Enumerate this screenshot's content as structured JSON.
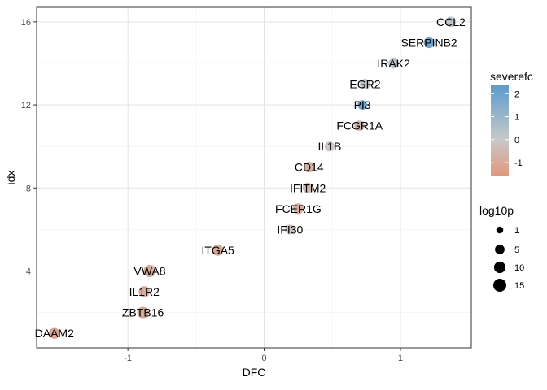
{
  "chart_data": {
    "type": "scatter",
    "xlabel": "DFC",
    "ylabel": "idx",
    "xlim": [
      -1.67,
      1.52
    ],
    "ylim": [
      0.3,
      16.7
    ],
    "x_ticks": [
      -1,
      0,
      1
    ],
    "x_tick_labels": [
      "-1",
      "0",
      "1"
    ],
    "y_ticks": [
      4,
      8,
      12,
      16
    ],
    "y_tick_labels": [
      "4",
      "8",
      "12",
      "16"
    ],
    "grid": true,
    "legend_position": "right",
    "color_scale": {
      "title": "severefc",
      "min": -1.6,
      "max": 2.4,
      "ticks": [
        2,
        1,
        0,
        -1
      ],
      "tick_labels": [
        "2",
        "1",
        "0",
        "-1"
      ],
      "low_color": "#e0977c",
      "mid_color": "#c8c8c8",
      "high_color": "#5b9bcc"
    },
    "size_scale": {
      "title": "log10p",
      "breaks": [
        1,
        5,
        10,
        15
      ],
      "break_labels": [
        "1",
        "5",
        "10",
        "15"
      ]
    },
    "points": [
      {
        "label": "DAAM2",
        "x": -1.54,
        "y": 1,
        "color_value": -1.2,
        "size_value": 8
      },
      {
        "label": "ZBTB16",
        "x": -0.89,
        "y": 2,
        "color_value": -1.0,
        "size_value": 10
      },
      {
        "label": "IL1R2",
        "x": -0.88,
        "y": 3,
        "color_value": -0.9,
        "size_value": 9
      },
      {
        "label": "VWA8",
        "x": -0.84,
        "y": 4,
        "color_value": -0.9,
        "size_value": 13
      },
      {
        "label": "ITGA5",
        "x": -0.34,
        "y": 5,
        "color_value": -1.0,
        "size_value": 9
      },
      {
        "label": "IFI30",
        "x": 0.19,
        "y": 6,
        "color_value": -0.2,
        "size_value": 6
      },
      {
        "label": "FCER1G",
        "x": 0.25,
        "y": 7,
        "color_value": -0.8,
        "size_value": 8
      },
      {
        "label": "IFITM2",
        "x": 0.32,
        "y": 8,
        "color_value": -0.5,
        "size_value": 7
      },
      {
        "label": "CD14",
        "x": 0.33,
        "y": 9,
        "color_value": -0.7,
        "size_value": 8
      },
      {
        "label": "IL1B",
        "x": 0.48,
        "y": 10,
        "color_value": -0.1,
        "size_value": 6
      },
      {
        "label": "FCGR1A",
        "x": 0.7,
        "y": 11,
        "color_value": -0.5,
        "size_value": 7
      },
      {
        "label": "PI3",
        "x": 0.72,
        "y": 12,
        "color_value": 2.0,
        "size_value": 5
      },
      {
        "label": "EGR2",
        "x": 0.74,
        "y": 13,
        "color_value": 0.2,
        "size_value": 7
      },
      {
        "label": "IRAK2",
        "x": 0.95,
        "y": 14,
        "color_value": 0.3,
        "size_value": 7
      },
      {
        "label": "SERPINB2",
        "x": 1.21,
        "y": 15,
        "color_value": 1.9,
        "size_value": 8
      },
      {
        "label": "CCL2",
        "x": 1.37,
        "y": 16,
        "color_value": 0.2,
        "size_value": 7
      }
    ]
  }
}
